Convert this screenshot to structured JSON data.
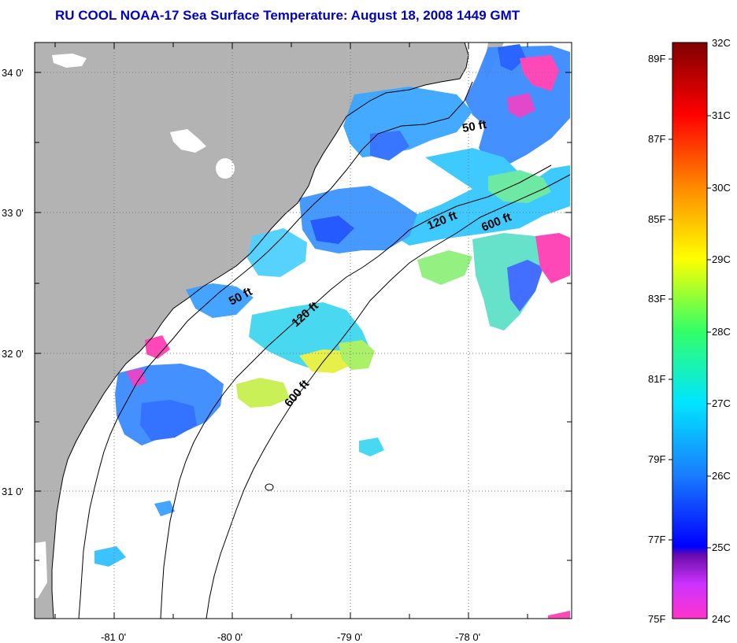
{
  "title": "RU COOL  NOAA-17  Sea Surface Temperature:  August 18, 2008 1449 GMT",
  "colors": {
    "title": "#0000cc",
    "land": "#b3b3b3",
    "cloud": "#ffffff"
  },
  "map": {
    "lon_ticks": [
      "-81 0'",
      "-80 0'",
      "-79 0'",
      "-78 0'"
    ],
    "lat_ticks": [
      "34 0'",
      "33 0'",
      "32 0'",
      "31 0'"
    ],
    "contour_labels": [
      "50 ft",
      "120 ft",
      "600 ft",
      "50 ft",
      "120 ft",
      "600 ft"
    ]
  },
  "colorbar": {
    "celsius": [
      "32C",
      "31C",
      "30C",
      "29C",
      "28C",
      "27C",
      "26C",
      "25C",
      "24C"
    ],
    "fahrenheit": [
      "89F",
      "87F",
      "85F",
      "83F",
      "81F",
      "79F",
      "77F",
      "75F"
    ]
  }
}
